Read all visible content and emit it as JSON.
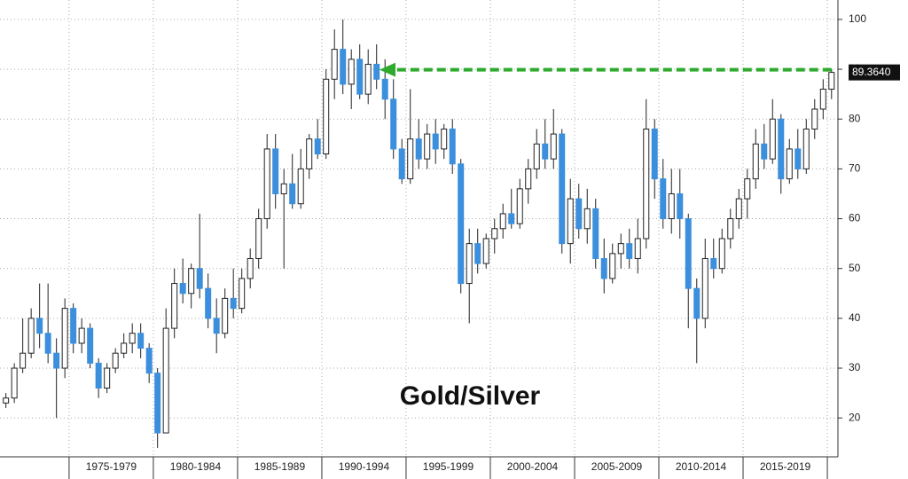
{
  "chart_data": {
    "type": "candlestick",
    "annotation": "Gold/Silver",
    "last_value": {
      "value": 89.364,
      "label": "89.3640"
    },
    "xlim": [
      1970.9,
      2020.63
    ],
    "xticks": [
      1975,
      1980,
      1985,
      1990,
      1995,
      2000,
      2005,
      2010,
      2015,
      2020
    ],
    "period_labels": [
      "1975-1979",
      "1980-1984",
      "1985-1989",
      "1990-1994",
      "1995-1999",
      "2000-2004",
      "2005-2009",
      "2010-2014",
      "2015-2019"
    ],
    "ylim": [
      12.2,
      103.9
    ],
    "yticks": [
      20,
      30,
      40,
      50,
      60,
      70,
      80,
      90,
      100
    ],
    "grid": true,
    "up_color": "#ffffff",
    "down_color": "#3b8fdc",
    "arrow_color": "#2eaa2e",
    "x": [
      1971,
      1971.5,
      1972,
      1972.5,
      1973,
      1973.5,
      1974,
      1974.5,
      1975,
      1975.5,
      1976,
      1976.5,
      1977,
      1977.5,
      1978,
      1978.5,
      1979,
      1979.5,
      1980,
      1980.5,
      1981,
      1981.5,
      1982,
      1982.5,
      1983,
      1983.5,
      1984,
      1984.5,
      1985,
      1985.5,
      1986,
      1986.5,
      1987,
      1987.5,
      1988,
      1988.5,
      1989,
      1989.5,
      1990,
      1990.5,
      1991,
      1991.5,
      1992,
      1992.5,
      1993,
      1993.5,
      1994,
      1994.5,
      1995,
      1995.5,
      1996,
      1996.5,
      1997,
      1997.5,
      1998,
      1998.5,
      1999,
      1999.5,
      2000,
      2000.5,
      2001,
      2001.5,
      2002,
      2002.5,
      2003,
      2003.5,
      2004,
      2004.5,
      2005,
      2005.5,
      2006,
      2006.5,
      2007,
      2007.5,
      2008,
      2008.5,
      2009,
      2009.5,
      2010,
      2010.5,
      2011,
      2011.5,
      2012,
      2012.5,
      2013,
      2013.5,
      2014,
      2014.5,
      2015,
      2015.5,
      2016,
      2016.5,
      2017,
      2017.5,
      2018,
      2018.5,
      2019,
      2019.5,
      2020
    ],
    "ohlc": [
      [
        23,
        25,
        22,
        24
      ],
      [
        24,
        31,
        23,
        30
      ],
      [
        30,
        40,
        29,
        33
      ],
      [
        33,
        42,
        32,
        40
      ],
      [
        40,
        47,
        34,
        37
      ],
      [
        37,
        47,
        31,
        33
      ],
      [
        33,
        36,
        20,
        30
      ],
      [
        30,
        44,
        28,
        42
      ],
      [
        42,
        43,
        33,
        35
      ],
      [
        35,
        40,
        33,
        38
      ],
      [
        38,
        39,
        30,
        31
      ],
      [
        31,
        32,
        24,
        26
      ],
      [
        26,
        31,
        25,
        30
      ],
      [
        30,
        34,
        29,
        33
      ],
      [
        33,
        37,
        32,
        35
      ],
      [
        35,
        39,
        33,
        37
      ],
      [
        37,
        39,
        32,
        34
      ],
      [
        34,
        35,
        27,
        29
      ],
      [
        29,
        30,
        14,
        17
      ],
      [
        17,
        42,
        17,
        38
      ],
      [
        38,
        50,
        36,
        47
      ],
      [
        47,
        52,
        43,
        45
      ],
      [
        45,
        51,
        42,
        50
      ],
      [
        50,
        61,
        44,
        46
      ],
      [
        46,
        49,
        38,
        40
      ],
      [
        40,
        44,
        33,
        37
      ],
      [
        37,
        46,
        36,
        44
      ],
      [
        44,
        50,
        40,
        42
      ],
      [
        42,
        50,
        41,
        48
      ],
      [
        48,
        54,
        46,
        52
      ],
      [
        52,
        62,
        50,
        60
      ],
      [
        60,
        77,
        58,
        74
      ],
      [
        74,
        77,
        62,
        65
      ],
      [
        65,
        70,
        50,
        67
      ],
      [
        67,
        73,
        62,
        63
      ],
      [
        63,
        74,
        62,
        70
      ],
      [
        70,
        77,
        68,
        76
      ],
      [
        76,
        80,
        72,
        73
      ],
      [
        73,
        90,
        72,
        88
      ],
      [
        88,
        98,
        84,
        94
      ],
      [
        94,
        100,
        85,
        87
      ],
      [
        87,
        94,
        82,
        92
      ],
      [
        92,
        95,
        84,
        85
      ],
      [
        85,
        94,
        83,
        91
      ],
      [
        91,
        95,
        86,
        88
      ],
      [
        88,
        92,
        80,
        84
      ],
      [
        84,
        88,
        72,
        74
      ],
      [
        74,
        76,
        67,
        68
      ],
      [
        68,
        86,
        67,
        76
      ],
      [
        76,
        80,
        70,
        72
      ],
      [
        72,
        79,
        70,
        77
      ],
      [
        77,
        80,
        71,
        74
      ],
      [
        74,
        79,
        72,
        78
      ],
      [
        78,
        80,
        69,
        71
      ],
      [
        71,
        72,
        45,
        47
      ],
      [
        47,
        58,
        39,
        55
      ],
      [
        55,
        58,
        49,
        51
      ],
      [
        51,
        57,
        50,
        56
      ],
      [
        56,
        60,
        53,
        58
      ],
      [
        58,
        63,
        56,
        61
      ],
      [
        61,
        66,
        58,
        59
      ],
      [
        59,
        68,
        58,
        66
      ],
      [
        66,
        72,
        63,
        70
      ],
      [
        70,
        78,
        68,
        75
      ],
      [
        75,
        80,
        70,
        72
      ],
      [
        72,
        82,
        70,
        77
      ],
      [
        77,
        78,
        53,
        55
      ],
      [
        55,
        68,
        51,
        64
      ],
      [
        64,
        67,
        56,
        58
      ],
      [
        58,
        66,
        55,
        62
      ],
      [
        62,
        64,
        50,
        52
      ],
      [
        52,
        56,
        45,
        48
      ],
      [
        48,
        55,
        47,
        53
      ],
      [
        53,
        57,
        50,
        55
      ],
      [
        55,
        58,
        50,
        52
      ],
      [
        52,
        60,
        49,
        56
      ],
      [
        56,
        84,
        54,
        78
      ],
      [
        78,
        80,
        64,
        68
      ],
      [
        68,
        72,
        58,
        60
      ],
      [
        60,
        70,
        57,
        65
      ],
      [
        65,
        70,
        56,
        60
      ],
      [
        60,
        61,
        38,
        46
      ],
      [
        46,
        48,
        31,
        40
      ],
      [
        40,
        56,
        38,
        52
      ],
      [
        52,
        56,
        48,
        50
      ],
      [
        50,
        58,
        49,
        56
      ],
      [
        56,
        62,
        54,
        60
      ],
      [
        60,
        66,
        58,
        64
      ],
      [
        64,
        70,
        60,
        68
      ],
      [
        68,
        78,
        66,
        75
      ],
      [
        75,
        79,
        70,
        72
      ],
      [
        72,
        84,
        71,
        80
      ],
      [
        80,
        81,
        65,
        68
      ],
      [
        68,
        76,
        67,
        74
      ],
      [
        74,
        78,
        68,
        70
      ],
      [
        70,
        80,
        69,
        78
      ],
      [
        78,
        84,
        76,
        82
      ],
      [
        82,
        88,
        80,
        86
      ],
      [
        86,
        90,
        84,
        89.364
      ]
    ]
  }
}
